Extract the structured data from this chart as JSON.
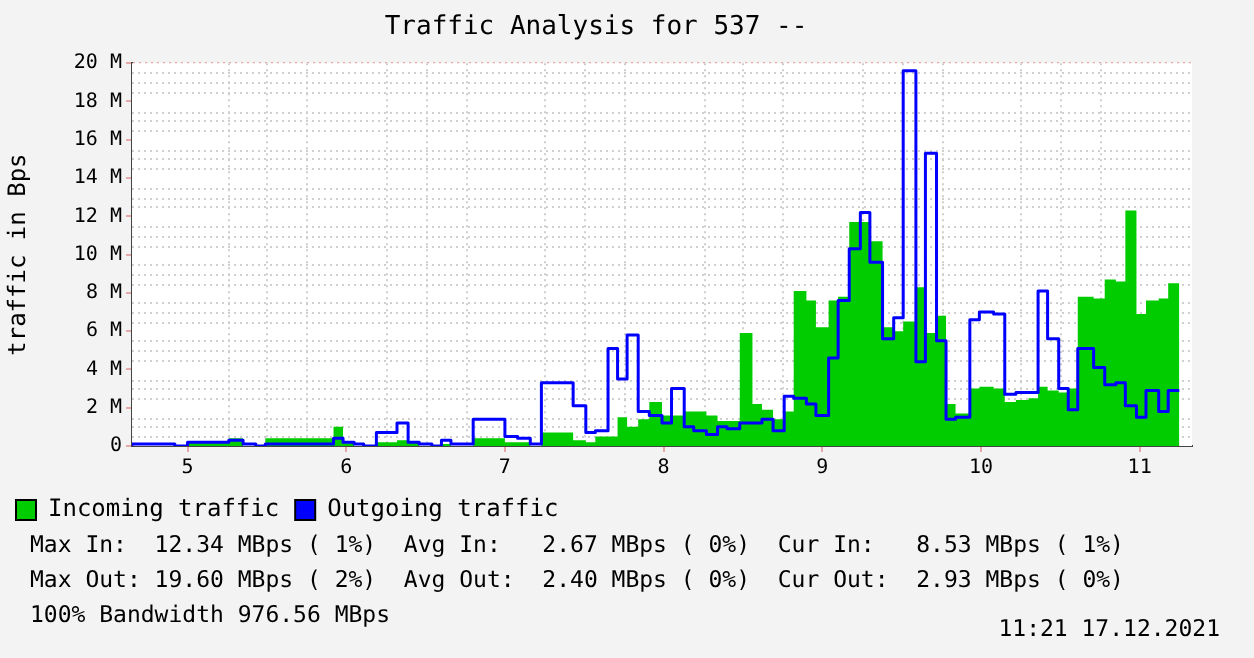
{
  "chart_data": {
    "type": "step",
    "title": "Traffic Analysis for 537 --",
    "ylabel": "traffic in Bps",
    "x": [
      4.65,
      4.92,
      5.0,
      5.26,
      5.35,
      5.43,
      5.49,
      5.92,
      5.98,
      6.05,
      6.11,
      6.19,
      6.32,
      6.39,
      6.46,
      6.54,
      6.6,
      6.66,
      6.8,
      7.0,
      7.08,
      7.16,
      7.23,
      7.43,
      7.51,
      7.57,
      7.65,
      7.71,
      7.77,
      7.84,
      7.91,
      7.99,
      8.05,
      8.13,
      8.19,
      8.27,
      8.34,
      8.4,
      8.48,
      8.56,
      8.62,
      8.69,
      8.76,
      8.82,
      8.9,
      8.96,
      9.04,
      9.1,
      9.17,
      9.24,
      9.3,
      9.38,
      9.45,
      9.51,
      9.59,
      9.65,
      9.72,
      9.78,
      9.84,
      9.93,
      9.99,
      10.08,
      10.15,
      10.22,
      10.3,
      10.36,
      10.42,
      10.49,
      10.55,
      10.61,
      10.71,
      10.78,
      10.85,
      10.91,
      10.98,
      11.04,
      11.12,
      11.18,
      11.25
    ],
    "series": [
      {
        "name": "Incoming traffic",
        "type": "area",
        "color": "#00cc00",
        "values": [
          0,
          0,
          0,
          0.2,
          0.4,
          0,
          0,
          0.4,
          1.0,
          0.2,
          0,
          0,
          0.2,
          0.3,
          0.2,
          0,
          0,
          0.1,
          0,
          0.4,
          0.2,
          0.2,
          0,
          0.7,
          0.3,
          0.2,
          0.5,
          0.5,
          1.5,
          1.0,
          1.4,
          2.3,
          1.6,
          1.6,
          1.8,
          1.8,
          1.6,
          1.3,
          1.3,
          5.9,
          2.2,
          1.9,
          1.4,
          1.8,
          8.1,
          7.6,
          6.2,
          7.6,
          7.8,
          11.7,
          11.7,
          10.7,
          6.2,
          6.0,
          6.5,
          8.3,
          5.9,
          6.8,
          2.2,
          1.7,
          3.0,
          3.1,
          3.0,
          2.3,
          2.4,
          2.5,
          3.1,
          2.9,
          2.8,
          3.0,
          7.8,
          7.7,
          8.7,
          8.6,
          12.3,
          6.9,
          7.6,
          7.7,
          8.5
        ]
      },
      {
        "name": "Outgoing traffic",
        "type": "step",
        "color": "#0000ff",
        "values": [
          0,
          0.1,
          0,
          0.2,
          0.3,
          0.1,
          0,
          0.1,
          0.4,
          0.2,
          0.1,
          0,
          0.7,
          1.2,
          0.2,
          0.1,
          0,
          0.3,
          0.1,
          1.4,
          0.5,
          0.4,
          0.1,
          3.3,
          2.1,
          0.7,
          0.8,
          5.1,
          3.5,
          5.8,
          1.8,
          1.6,
          1.2,
          3.0,
          1.0,
          0.8,
          0.6,
          1.0,
          0.9,
          1.2,
          1.2,
          1.4,
          0.8,
          2.6,
          2.5,
          2.2,
          1.6,
          4.6,
          7.6,
          10.3,
          12.2,
          9.6,
          5.6,
          6.7,
          19.6,
          4.4,
          15.3,
          5.5,
          1.4,
          1.5,
          6.6,
          7.0,
          6.9,
          2.7,
          2.8,
          2.8,
          8.1,
          5.6,
          3.0,
          1.9,
          5.1,
          4.1,
          3.2,
          3.3,
          2.1,
          1.5,
          2.9,
          1.8,
          2.9
        ]
      }
    ],
    "xlim": [
      4.65,
      11.33
    ],
    "xticks": [
      5,
      6,
      7,
      8,
      9,
      10,
      11
    ],
    "ylim": [
      0,
      20
    ],
    "yticks": [
      {
        "value": 0,
        "label": "0"
      },
      {
        "value": 2,
        "label": "2 M"
      },
      {
        "value": 4,
        "label": "4 M"
      },
      {
        "value": 6,
        "label": "6 M"
      },
      {
        "value": 8,
        "label": "8 M"
      },
      {
        "value": 10,
        "label": "10 M"
      },
      {
        "value": 12,
        "label": "12 M"
      },
      {
        "value": 14,
        "label": "14 M"
      },
      {
        "value": 16,
        "label": "16 M"
      },
      {
        "value": 18,
        "label": "18 M"
      },
      {
        "value": 20,
        "label": "20 M"
      }
    ],
    "grid": true,
    "legend": "bottom",
    "marker": "none",
    "line_style": "solid",
    "annotations": [
      "Max In:  12.34 MBps ( 1%)  Avg In:   2.67 MBps ( 0%)  Cur In:   8.53 MBps ( 1%)",
      "Max Out: 19.60 MBps ( 2%)  Avg Out:  2.40 MBps ( 0%)  Cur Out:  2.93 MBps ( 0%)",
      "100% Bandwidth 976.56 MBps",
      "11:21 17.12.2021"
    ]
  }
}
